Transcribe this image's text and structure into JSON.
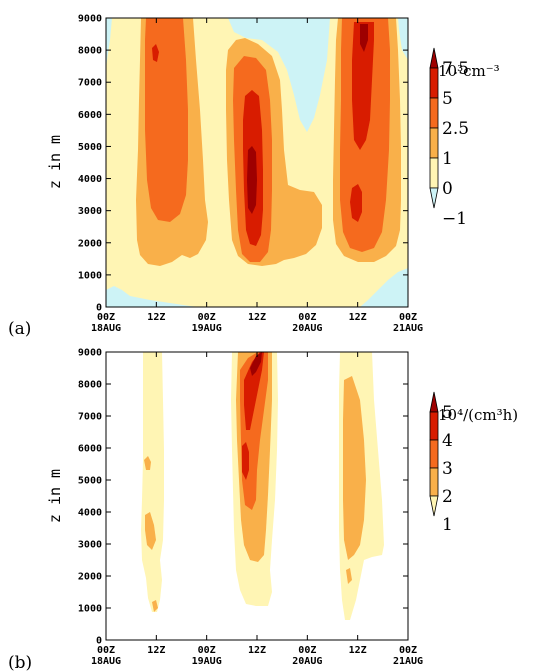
{
  "chart_data": [
    {
      "type": "heatmap",
      "panel_label": "(a)",
      "ylabel": "z in m",
      "ylim": [
        0,
        9000
      ],
      "yticks": [
        "0",
        "1000",
        "2000",
        "3000",
        "4000",
        "5000",
        "6000",
        "7000",
        "8000",
        "9000"
      ],
      "xticks": [
        {
          "time": "00Z",
          "date": "18AUG"
        },
        {
          "time": "12Z",
          "date": ""
        },
        {
          "time": "00Z",
          "date": "19AUG"
        },
        {
          "time": "12Z",
          "date": ""
        },
        {
          "time": "00Z",
          "date": "20AUG"
        },
        {
          "time": "12Z",
          "date": ""
        },
        {
          "time": "00Z",
          "date": "21AUG"
        }
      ],
      "colorbar": {
        "unit": "10³cm⁻³",
        "levels": [
          "7.5",
          "5",
          "2.5",
          "1",
          "0",
          "−1"
        ],
        "colors": [
          "#9e0000",
          "#d81c00",
          "#f56a1e",
          "#f9b04a",
          "#fff5b4",
          "#cdf3f6"
        ]
      },
      "grid": false
    },
    {
      "type": "heatmap",
      "panel_label": "(b)",
      "ylabel": "z in m",
      "ylim": [
        0,
        9000
      ],
      "yticks": [
        "0",
        "1000",
        "2000",
        "3000",
        "4000",
        "5000",
        "6000",
        "7000",
        "8000",
        "9000"
      ],
      "xticks": [
        {
          "time": "00Z",
          "date": "18AUG"
        },
        {
          "time": "12Z",
          "date": ""
        },
        {
          "time": "00Z",
          "date": "19AUG"
        },
        {
          "time": "12Z",
          "date": ""
        },
        {
          "time": "00Z",
          "date": "20AUG"
        },
        {
          "time": "12Z",
          "date": ""
        },
        {
          "time": "00Z",
          "date": "21AUG"
        }
      ],
      "colorbar": {
        "unit": "10⁴/(cm³h)",
        "levels": [
          "5",
          "4",
          "3",
          "2",
          "1"
        ],
        "colors": [
          "#9e0000",
          "#d81c00",
          "#f56a1e",
          "#f9b04a",
          "#fff5b4"
        ]
      },
      "grid": false
    }
  ]
}
